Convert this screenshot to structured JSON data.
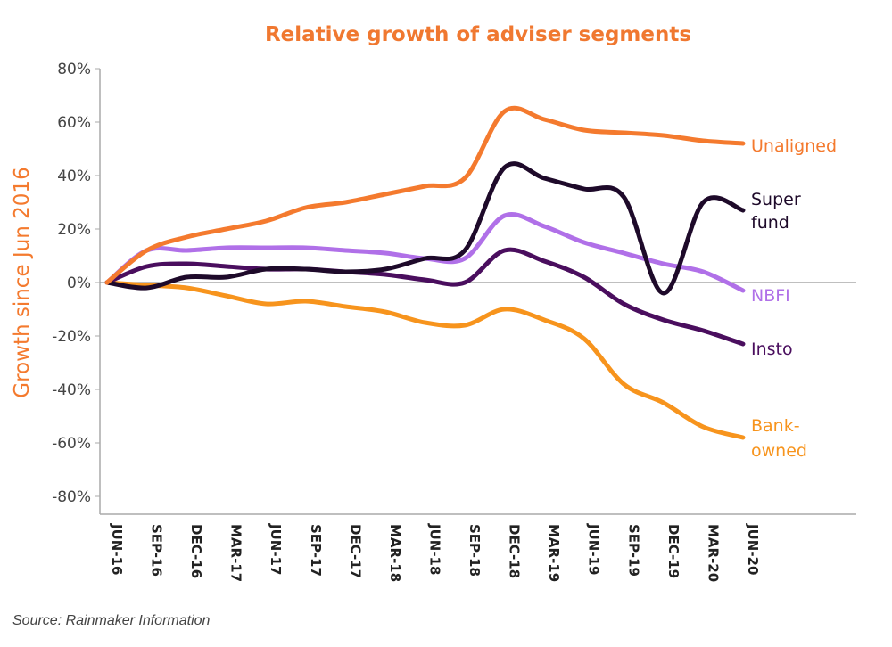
{
  "chart_data": {
    "type": "line",
    "title": "Relative growth of adviser segments",
    "ylabel": "Growth since Jun 2016",
    "xlabel": "",
    "ylim": [
      -80,
      80
    ],
    "yticks": [
      "80%",
      "60%",
      "40%",
      "20%",
      "0%",
      "-20%",
      "-40%",
      "-60%",
      "-80%"
    ],
    "categories": [
      "JUN-16",
      "SEP-16",
      "DEC-16",
      "MAR-17",
      "JUN-17",
      "SEP-17",
      "DEC-17",
      "MAR-18",
      "JUN-18",
      "SEP-18",
      "DEC-18",
      "MAR-19",
      "JUN-19",
      "SEP-19",
      "DEC-19",
      "MAR-20",
      "JUN-20"
    ],
    "grid": false,
    "legend": "direct labels at line ends",
    "series": [
      {
        "name": "Unaligned",
        "color": "#f47a2e",
        "values": [
          0,
          12,
          17,
          20,
          23,
          28,
          30,
          33,
          36,
          39,
          64,
          61,
          57,
          56,
          55,
          53,
          52
        ]
      },
      {
        "name": "Super fund",
        "color": "#1e0a2a",
        "values": [
          0,
          -2,
          2,
          2,
          5,
          5,
          4,
          5,
          9,
          12,
          43,
          39,
          35,
          32,
          -4,
          30,
          27
        ]
      },
      {
        "name": "NBFI",
        "color": "#b070e8",
        "values": [
          0,
          12,
          12,
          13,
          13,
          13,
          12,
          11,
          9,
          9,
          25,
          21,
          15,
          11,
          7,
          4,
          -3
        ]
      },
      {
        "name": "Insto",
        "color": "#4a0e5e",
        "values": [
          0,
          6,
          7,
          6,
          5,
          5,
          4,
          3,
          1,
          0,
          12,
          8,
          2,
          -8,
          -14,
          -18,
          -23
        ]
      },
      {
        "name": "Bank-owned",
        "color": "#f7941d",
        "values": [
          0,
          -1,
          -2,
          -5,
          -8,
          -7,
          -9,
          -11,
          -15,
          -16,
          -10,
          -14,
          -21,
          -38,
          -45,
          -54,
          -58
        ]
      }
    ],
    "title_color": "#f07830",
    "ylabel_color": "#f47a2e"
  },
  "source": "Source: Rainmaker Information"
}
